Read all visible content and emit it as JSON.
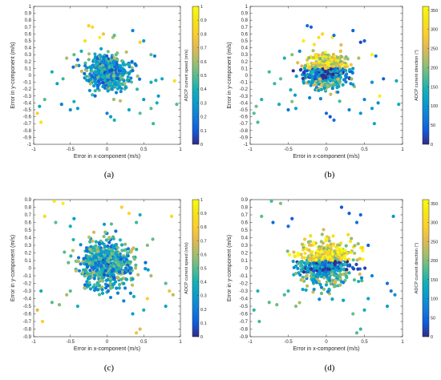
{
  "chart_data": [
    {
      "type": "scatter",
      "panel_label": "(a)",
      "xlabel": "Error in x-component (m/s)",
      "ylabel": "Error in y-component (m/s)",
      "colorbar_label": "ADCP current speed (m/s)",
      "xlim": [
        -1,
        1
      ],
      "ylim": [
        -1,
        1
      ],
      "xticks": [
        "-1",
        "-0.5",
        "0",
        "0.5",
        "1"
      ],
      "yticks": [
        "-1",
        "-0.9",
        "-0.8",
        "-0.7",
        "-0.6",
        "-0.5",
        "-0.4",
        "-0.3",
        "-0.2",
        "-0.1",
        "0",
        "0.1",
        "0.2",
        "0.3",
        "0.4",
        "0.5",
        "0.6",
        "0.7",
        "0.8",
        "0.9",
        "1"
      ],
      "clim": [
        0,
        1
      ],
      "cticks": [
        "0",
        "0.1",
        "0.2",
        "0.3",
        "0.4",
        "0.5",
        "0.6",
        "0.7",
        "0.8",
        "0.9",
        "1"
      ],
      "grid": false,
      "cluster": {
        "center": [
          0.0,
          0.05
        ],
        "spread": [
          0.14,
          0.12
        ]
      },
      "points": [
        [
          -0.25,
          0.72,
          0.8
        ],
        [
          -0.2,
          0.7,
          0.85
        ],
        [
          -0.05,
          0.6,
          0.75
        ],
        [
          -0.1,
          0.55,
          0.95
        ],
        [
          0.08,
          0.55,
          0.6
        ],
        [
          0.1,
          0.58,
          0.5
        ],
        [
          -0.35,
          0.35,
          0.4
        ],
        [
          -0.45,
          0.3,
          0.5
        ],
        [
          -0.55,
          0.25,
          0.6
        ],
        [
          -0.6,
          -0.05,
          0.45
        ],
        [
          -0.68,
          -0.12,
          0.3
        ],
        [
          -0.75,
          0.05,
          0.4
        ],
        [
          -0.85,
          -0.35,
          0.5
        ],
        [
          -0.92,
          -0.45,
          0.35
        ],
        [
          -0.95,
          -0.55,
          0.8
        ],
        [
          -0.9,
          -0.68,
          0.9
        ],
        [
          -0.62,
          -0.42,
          0.2
        ],
        [
          -0.5,
          -0.5,
          0.25
        ],
        [
          -0.4,
          -0.48,
          0.3
        ],
        [
          -0.45,
          -0.38,
          0.4
        ],
        [
          0.35,
          0.65,
          0.2
        ],
        [
          0.45,
          0.48,
          0.8
        ],
        [
          0.5,
          0.5,
          0.3
        ],
        [
          0.6,
          0.3,
          0.5
        ],
        [
          0.65,
          0.28,
          0.2
        ],
        [
          0.6,
          -0.1,
          0.4
        ],
        [
          0.7,
          -0.3,
          0.3
        ],
        [
          0.75,
          -0.05,
          0.35
        ],
        [
          0.92,
          -0.08,
          0.9
        ],
        [
          0.6,
          -0.48,
          0.5
        ],
        [
          0.68,
          -0.4,
          0.4
        ],
        [
          0.63,
          -0.7,
          0.45
        ],
        [
          0.45,
          -0.55,
          0.5
        ],
        [
          0.5,
          -0.35,
          0.3
        ],
        [
          0.05,
          -0.6,
          0.3
        ],
        [
          0.1,
          -0.65,
          0.4
        ],
        [
          0.0,
          -0.55,
          0.2
        ],
        [
          0.3,
          -0.5,
          0.35
        ],
        [
          0.95,
          -0.42,
          0.5
        ],
        [
          -0.3,
          0.5,
          0.9
        ]
      ]
    },
    {
      "type": "scatter",
      "panel_label": "(b)",
      "xlabel": "Error in x-component (m/s)",
      "ylabel": "Error in y-component (m/s)",
      "colorbar_label": "ADCP current direction (°)",
      "xlim": [
        -1,
        1
      ],
      "ylim": [
        -1,
        1
      ],
      "xticks": [
        "-1",
        "-0.5",
        "0",
        "0.5",
        "1"
      ],
      "yticks": [
        "-1",
        "-0.9",
        "-0.8",
        "-0.7",
        "-0.6",
        "-0.5",
        "-0.4",
        "-0.3",
        "-0.2",
        "-0.1",
        "0",
        "0.1",
        "0.2",
        "0.3",
        "0.4",
        "0.5",
        "0.6",
        "0.7",
        "0.8",
        "0.9",
        "1"
      ],
      "clim": [
        0,
        360
      ],
      "cticks": [
        "0",
        "50",
        "100",
        "150",
        "200",
        "250",
        "300",
        "350"
      ],
      "grid": false,
      "cluster": {
        "center": [
          0.0,
          0.05
        ],
        "spread": [
          0.14,
          0.12
        ]
      },
      "points": [
        [
          -0.25,
          0.72,
          60
        ],
        [
          -0.2,
          0.7,
          40
        ],
        [
          -0.05,
          0.6,
          300
        ],
        [
          -0.1,
          0.55,
          320
        ],
        [
          0.08,
          0.55,
          340
        ],
        [
          0.1,
          0.58,
          60
        ],
        [
          -0.35,
          0.35,
          80
        ],
        [
          -0.45,
          0.3,
          200
        ],
        [
          -0.55,
          0.25,
          150
        ],
        [
          -0.6,
          -0.05,
          180
        ],
        [
          -0.68,
          -0.12,
          160
        ],
        [
          -0.75,
          0.05,
          170
        ],
        [
          -0.85,
          -0.35,
          150
        ],
        [
          -0.92,
          -0.45,
          190
        ],
        [
          -0.95,
          -0.55,
          180
        ],
        [
          -0.9,
          -0.68,
          170
        ],
        [
          -0.62,
          -0.42,
          140
        ],
        [
          -0.5,
          -0.5,
          60
        ],
        [
          -0.4,
          -0.48,
          120
        ],
        [
          -0.45,
          -0.38,
          200
        ],
        [
          0.35,
          0.65,
          40
        ],
        [
          0.45,
          0.48,
          20
        ],
        [
          0.5,
          0.5,
          40
        ],
        [
          0.6,
          0.3,
          350
        ],
        [
          0.65,
          0.28,
          60
        ],
        [
          0.6,
          -0.1,
          100
        ],
        [
          0.7,
          -0.3,
          340
        ],
        [
          0.75,
          -0.05,
          40
        ],
        [
          0.92,
          -0.08,
          130
        ],
        [
          0.6,
          -0.48,
          110
        ],
        [
          0.68,
          -0.4,
          90
        ],
        [
          0.63,
          -0.7,
          120
        ],
        [
          0.45,
          -0.55,
          100
        ],
        [
          0.5,
          -0.35,
          80
        ],
        [
          0.05,
          -0.6,
          30
        ],
        [
          0.1,
          -0.65,
          60
        ],
        [
          0.0,
          -0.55,
          50
        ],
        [
          0.3,
          -0.5,
          80
        ],
        [
          0.95,
          -0.42,
          140
        ],
        [
          -0.3,
          0.5,
          340
        ]
      ]
    },
    {
      "type": "scatter",
      "panel_label": "(c)",
      "xlabel": "Error in x-component (m/s)",
      "ylabel": "Error in y-component (m/s)",
      "colorbar_label": "ADCP current speed (m/s)",
      "xlim": [
        -1,
        1
      ],
      "ylim": [
        -0.9,
        0.9
      ],
      "xticks": [
        "-1",
        "-0.5",
        "0",
        "0.5",
        "1"
      ],
      "yticks": [
        "-0.9",
        "-0.8",
        "-0.7",
        "-0.6",
        "-0.5",
        "-0.4",
        "-0.3",
        "-0.2",
        "-0.1",
        "0",
        "0.1",
        "0.2",
        "0.3",
        "0.4",
        "0.5",
        "0.6",
        "0.7",
        "0.8",
        "0.9"
      ],
      "clim": [
        0,
        1
      ],
      "cticks": [
        "0",
        "0.1",
        "0.2",
        "0.3",
        "0.4",
        "0.5",
        "0.6",
        "0.7",
        "0.8",
        "0.9",
        "1"
      ],
      "grid": false,
      "cluster": {
        "center": [
          0.0,
          0.05
        ],
        "spread": [
          0.18,
          0.16
        ]
      },
      "points": [
        [
          -0.72,
          0.88,
          0.9
        ],
        [
          -0.6,
          0.85,
          0.95
        ],
        [
          -0.85,
          0.68,
          0.85
        ],
        [
          -0.7,
          0.6,
          0.5
        ],
        [
          -0.45,
          0.65,
          0.3
        ],
        [
          -0.5,
          0.55,
          0.4
        ],
        [
          0.2,
          0.8,
          0.8
        ],
        [
          0.3,
          0.72,
          0.85
        ],
        [
          0.45,
          0.7,
          0.4
        ],
        [
          0.4,
          0.6,
          0.45
        ],
        [
          0.88,
          0.68,
          0.85
        ],
        [
          -0.9,
          -0.3,
          0.4
        ],
        [
          -0.95,
          -0.55,
          0.7
        ],
        [
          -0.88,
          -0.7,
          0.8
        ],
        [
          -0.75,
          -0.45,
          0.5
        ],
        [
          -0.65,
          -0.48,
          0.55
        ],
        [
          -0.55,
          -0.35,
          0.6
        ],
        [
          -0.5,
          -0.3,
          0.5
        ],
        [
          -0.4,
          -0.5,
          0.4
        ],
        [
          0.45,
          -0.8,
          0.7
        ],
        [
          0.4,
          -0.85,
          0.75
        ],
        [
          0.35,
          -0.6,
          0.3
        ],
        [
          0.5,
          -0.55,
          0.4
        ],
        [
          0.55,
          -0.4,
          0.8
        ],
        [
          0.8,
          -0.2,
          0.5
        ],
        [
          0.85,
          -0.3,
          0.75
        ],
        [
          0.9,
          -0.35,
          0.65
        ],
        [
          0.8,
          -0.5,
          0.35
        ],
        [
          0.6,
          -0.1,
          0.6
        ],
        [
          0.55,
          0.3,
          0.55
        ]
      ]
    },
    {
      "type": "scatter",
      "panel_label": "(d)",
      "xlabel": "Error in x-component (m/s)",
      "ylabel": "Error in y-component (m/s)",
      "colorbar_label": "ADCP current direction (°)",
      "xlim": [
        -1,
        1
      ],
      "ylim": [
        -0.9,
        0.9
      ],
      "xticks": [
        "-1",
        "-0.5",
        "0",
        "0.5",
        "1"
      ],
      "yticks": [
        "-0.9",
        "-0.8",
        "-0.7",
        "-0.6",
        "-0.5",
        "-0.4",
        "-0.3",
        "-0.2",
        "-0.1",
        "0",
        "0.1",
        "0.2",
        "0.3",
        "0.4",
        "0.5",
        "0.6",
        "0.7",
        "0.8",
        "0.9"
      ],
      "clim": [
        0,
        360
      ],
      "cticks": [
        "0",
        "50",
        "100",
        "150",
        "200",
        "250",
        "300",
        "350"
      ],
      "grid": false,
      "cluster": {
        "center": [
          0.0,
          0.05
        ],
        "spread": [
          0.18,
          0.16
        ]
      },
      "points": [
        [
          -0.72,
          0.88,
          170
        ],
        [
          -0.6,
          0.85,
          200
        ],
        [
          -0.85,
          0.68,
          180
        ],
        [
          -0.7,
          0.6,
          50
        ],
        [
          -0.45,
          0.65,
          40
        ],
        [
          -0.5,
          0.55,
          60
        ],
        [
          0.2,
          0.8,
          30
        ],
        [
          0.3,
          0.72,
          40
        ],
        [
          0.45,
          0.7,
          50
        ],
        [
          0.4,
          0.6,
          60
        ],
        [
          0.88,
          0.68,
          100
        ],
        [
          -0.9,
          -0.3,
          150
        ],
        [
          -0.95,
          -0.55,
          160
        ],
        [
          -0.88,
          -0.7,
          170
        ],
        [
          -0.75,
          -0.45,
          180
        ],
        [
          -0.65,
          -0.48,
          190
        ],
        [
          -0.55,
          -0.35,
          170
        ],
        [
          -0.5,
          -0.3,
          160
        ],
        [
          -0.4,
          -0.5,
          200
        ],
        [
          0.45,
          -0.8,
          160
        ],
        [
          0.4,
          -0.85,
          180
        ],
        [
          0.35,
          -0.6,
          190
        ],
        [
          0.5,
          -0.55,
          140
        ],
        [
          0.55,
          -0.4,
          120
        ],
        [
          0.8,
          -0.2,
          60
        ],
        [
          0.85,
          -0.3,
          70
        ],
        [
          0.9,
          -0.35,
          100
        ],
        [
          0.8,
          -0.5,
          120
        ],
        [
          0.6,
          -0.1,
          80
        ],
        [
          0.55,
          0.3,
          40
        ]
      ]
    }
  ]
}
